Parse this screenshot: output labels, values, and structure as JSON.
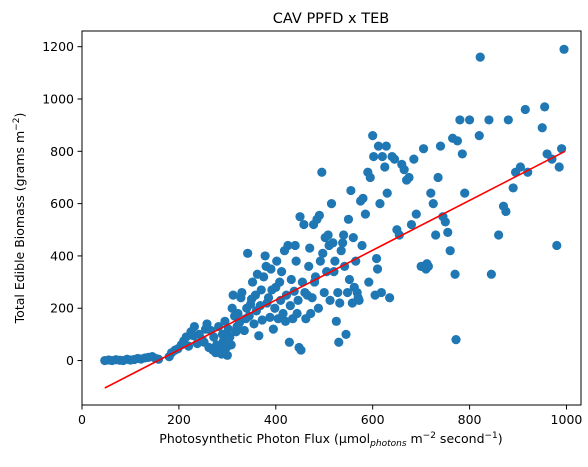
{
  "chart_data": {
    "type": "scatter",
    "title": "CAV PPFD x TEB",
    "xlabel": {
      "prefix": "Photosynthetic Photon Flux (µmol",
      "sub": "photons",
      "mid": " m",
      "sup1": "−2",
      "mid2": " second",
      "sup2": "−1",
      "suffix": ")"
    },
    "ylabel": {
      "prefix": "Total Edible Biomass (grams m",
      "sup": "−2",
      "suffix": ")"
    },
    "xlim": [
      0,
      1030
    ],
    "ylim": [
      -170,
      1260
    ],
    "xticks": [
      0,
      200,
      400,
      600,
      800,
      1000
    ],
    "yticks": [
      0,
      200,
      400,
      600,
      800,
      1000,
      1200
    ],
    "grid": false,
    "colors": {
      "points": "#1f77b4",
      "fit_line": "#ff0000"
    },
    "fit_line": {
      "x": [
        47,
        997
      ],
      "y": [
        -105,
        800
      ]
    },
    "series": [
      {
        "points": [
          [
            47,
            0
          ],
          [
            55,
            2
          ],
          [
            62,
            0
          ],
          [
            70,
            3
          ],
          [
            78,
            1
          ],
          [
            85,
            0
          ],
          [
            93,
            5
          ],
          [
            100,
            2
          ],
          [
            108,
            4
          ],
          [
            115,
            8
          ],
          [
            122,
            6
          ],
          [
            130,
            10
          ],
          [
            137,
            12
          ],
          [
            145,
            15
          ],
          [
            152,
            8
          ],
          [
            158,
            5
          ],
          [
            180,
            15
          ],
          [
            185,
            30
          ],
          [
            192,
            40
          ],
          [
            198,
            45
          ],
          [
            205,
            60
          ],
          [
            210,
            75
          ],
          [
            215,
            90
          ],
          [
            220,
            55
          ],
          [
            225,
            110
          ],
          [
            230,
            95
          ],
          [
            232,
            130
          ],
          [
            238,
            65
          ],
          [
            242,
            100
          ],
          [
            248,
            80
          ],
          [
            252,
            70
          ],
          [
            255,
            120
          ],
          [
            258,
            140
          ],
          [
            262,
            50
          ],
          [
            266,
            115
          ],
          [
            270,
            40
          ],
          [
            272,
            90
          ],
          [
            276,
            30
          ],
          [
            278,
            60
          ],
          [
            282,
            130
          ],
          [
            285,
            45
          ],
          [
            288,
            25
          ],
          [
            290,
            100
          ],
          [
            292,
            75
          ],
          [
            295,
            150
          ],
          [
            298,
            50
          ],
          [
            300,
            20
          ],
          [
            302,
            120
          ],
          [
            305,
            90
          ],
          [
            308,
            60
          ],
          [
            310,
            200
          ],
          [
            312,
            250
          ],
          [
            315,
            170
          ],
          [
            318,
            110
          ],
          [
            320,
            130
          ],
          [
            322,
            180
          ],
          [
            325,
            145
          ],
          [
            328,
            240
          ],
          [
            330,
            260
          ],
          [
            335,
            115
          ],
          [
            338,
            160
          ],
          [
            340,
            200
          ],
          [
            342,
            410
          ],
          [
            345,
            170
          ],
          [
            348,
            215
          ],
          [
            350,
            235
          ],
          [
            352,
            300
          ],
          [
            355,
            140
          ],
          [
            358,
            250
          ],
          [
            360,
            190
          ],
          [
            362,
            330
          ],
          [
            365,
            95
          ],
          [
            368,
            210
          ],
          [
            370,
            270
          ],
          [
            372,
            155
          ],
          [
            375,
            320
          ],
          [
            378,
            400
          ],
          [
            380,
            360
          ],
          [
            382,
            220
          ],
          [
            385,
            240
          ],
          [
            388,
            165
          ],
          [
            390,
            350
          ],
          [
            392,
            270
          ],
          [
            395,
            120
          ],
          [
            398,
            200
          ],
          [
            400,
            280
          ],
          [
            402,
            380
          ],
          [
            405,
            160
          ],
          [
            408,
            300
          ],
          [
            410,
            230
          ],
          [
            412,
            340
          ],
          [
            415,
            180
          ],
          [
            418,
            420
          ],
          [
            420,
            150
          ],
          [
            422,
            250
          ],
          [
            425,
            440
          ],
          [
            428,
            70
          ],
          [
            430,
            210
          ],
          [
            432,
            310
          ],
          [
            435,
            160
          ],
          [
            438,
            265
          ],
          [
            440,
            440
          ],
          [
            442,
            380
          ],
          [
            444,
            180
          ],
          [
            446,
            230
          ],
          [
            448,
            50
          ],
          [
            450,
            550
          ],
          [
            452,
            40
          ],
          [
            455,
            300
          ],
          [
            458,
            520
          ],
          [
            460,
            260
          ],
          [
            462,
            160
          ],
          [
            465,
            250
          ],
          [
            468,
            360
          ],
          [
            470,
            430
          ],
          [
            472,
            180
          ],
          [
            475,
            240
          ],
          [
            478,
            520
          ],
          [
            480,
            300
          ],
          [
            482,
            320
          ],
          [
            485,
            540
          ],
          [
            488,
            200
          ],
          [
            490,
            555
          ],
          [
            492,
            380
          ],
          [
            495,
            720
          ],
          [
            497,
            410
          ],
          [
            500,
            260
          ],
          [
            502,
            470
          ],
          [
            505,
            340
          ],
          [
            508,
            480
          ],
          [
            510,
            440
          ],
          [
            512,
            230
          ],
          [
            515,
            600
          ],
          [
            518,
            450
          ],
          [
            520,
            340
          ],
          [
            522,
            380
          ],
          [
            525,
            150
          ],
          [
            528,
            260
          ],
          [
            530,
            70
          ],
          [
            532,
            220
          ],
          [
            535,
            420
          ],
          [
            538,
            450
          ],
          [
            540,
            480
          ],
          [
            542,
            360
          ],
          [
            545,
            100
          ],
          [
            548,
            260
          ],
          [
            550,
            540
          ],
          [
            552,
            310
          ],
          [
            555,
            650
          ],
          [
            558,
            220
          ],
          [
            560,
            470
          ],
          [
            562,
            280
          ],
          [
            565,
            380
          ],
          [
            568,
            260
          ],
          [
            570,
            240
          ],
          [
            572,
            230
          ],
          [
            575,
            610
          ],
          [
            578,
            440
          ],
          [
            580,
            620
          ],
          [
            585,
            560
          ],
          [
            590,
            720
          ],
          [
            592,
            300
          ],
          [
            595,
            700
          ],
          [
            600,
            860
          ],
          [
            602,
            780
          ],
          [
            605,
            250
          ],
          [
            608,
            390
          ],
          [
            610,
            350
          ],
          [
            612,
            820
          ],
          [
            615,
            600
          ],
          [
            618,
            260
          ],
          [
            620,
            780
          ],
          [
            625,
            740
          ],
          [
            628,
            820
          ],
          [
            630,
            640
          ],
          [
            635,
            240
          ],
          [
            640,
            780
          ],
          [
            645,
            770
          ],
          [
            650,
            500
          ],
          [
            655,
            480
          ],
          [
            660,
            750
          ],
          [
            665,
            730
          ],
          [
            670,
            690
          ],
          [
            675,
            700
          ],
          [
            680,
            520
          ],
          [
            685,
            770
          ],
          [
            690,
            560
          ],
          [
            700,
            360
          ],
          [
            705,
            810
          ],
          [
            710,
            350
          ],
          [
            712,
            370
          ],
          [
            715,
            360
          ],
          [
            720,
            640
          ],
          [
            725,
            600
          ],
          [
            730,
            480
          ],
          [
            735,
            700
          ],
          [
            740,
            820
          ],
          [
            745,
            550
          ],
          [
            750,
            530
          ],
          [
            755,
            490
          ],
          [
            760,
            420
          ],
          [
            765,
            850
          ],
          [
            770,
            330
          ],
          [
            772,
            80
          ],
          [
            775,
            840
          ],
          [
            780,
            920
          ],
          [
            785,
            790
          ],
          [
            790,
            640
          ],
          [
            800,
            920
          ],
          [
            820,
            860
          ],
          [
            822,
            1160
          ],
          [
            840,
            920
          ],
          [
            845,
            330
          ],
          [
            860,
            480
          ],
          [
            870,
            590
          ],
          [
            875,
            570
          ],
          [
            880,
            920
          ],
          [
            890,
            660
          ],
          [
            895,
            720
          ],
          [
            905,
            740
          ],
          [
            915,
            960
          ],
          [
            920,
            720
          ],
          [
            950,
            890
          ],
          [
            955,
            970
          ],
          [
            960,
            790
          ],
          [
            970,
            770
          ],
          [
            980,
            440
          ],
          [
            985,
            740
          ],
          [
            990,
            810
          ],
          [
            995,
            1190
          ]
        ]
      }
    ]
  }
}
